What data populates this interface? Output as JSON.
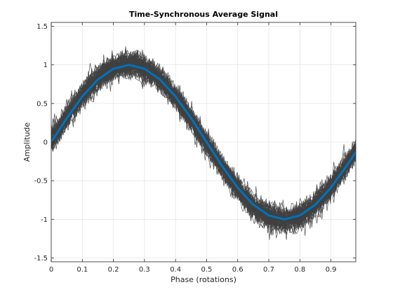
{
  "chart_data": {
    "type": "line",
    "title": "Time-Synchronous Average Signal",
    "xlabel": "Phase (rotations)",
    "ylabel": "Amplitude",
    "xlim": [
      0,
      0.98
    ],
    "ylim": [
      -1.55,
      1.55
    ],
    "xticks": [
      "0",
      "0.1",
      "0.2",
      "0.3",
      "0.4",
      "0.5",
      "0.6",
      "0.7",
      "0.8",
      "0.9"
    ],
    "yticks": [
      "-1.5",
      "-1",
      "-0.5",
      "0",
      "0.5",
      "1",
      "1.5"
    ],
    "grid": true,
    "legend": "none",
    "colors": {
      "raw_signals": "#404040",
      "average": "#0072BD",
      "grid": "#dedede",
      "axes": "#262626"
    },
    "series": [
      {
        "role": "raw-signal-ensemble",
        "description_note": "many overlapping noisy traces of a sine wave",
        "trace_count": 60,
        "amplitude": 1.0,
        "noise_std": 0.07
      },
      {
        "role": "synchronous-average",
        "x": [
          0,
          0.05,
          0.1,
          0.15,
          0.2,
          0.25,
          0.3,
          0.35,
          0.4,
          0.45,
          0.5,
          0.55,
          0.6,
          0.65,
          0.7,
          0.75,
          0.8,
          0.85,
          0.9,
          0.95,
          0.98
        ],
        "y": [
          0,
          0.31,
          0.59,
          0.81,
          0.95,
          1.0,
          0.95,
          0.81,
          0.59,
          0.31,
          0,
          -0.31,
          -0.59,
          -0.81,
          -0.95,
          -1.0,
          -0.95,
          -0.81,
          -0.59,
          -0.31,
          -0.13
        ]
      }
    ]
  }
}
